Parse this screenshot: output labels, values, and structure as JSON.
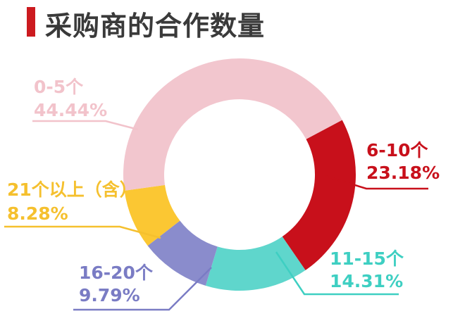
{
  "chart_data": {
    "type": "pie",
    "title": "采购商的合作数量",
    "donut": true,
    "categories": [
      "6-10个",
      "11-15个",
      "16-20个",
      "21个以上（含）",
      "0-5个"
    ],
    "values": [
      23.18,
      14.31,
      9.79,
      8.28,
      44.44
    ],
    "percent_labels": [
      "23.18%",
      "14.31%",
      "9.79%",
      "8.28%",
      "44.44%"
    ],
    "colors": [
      "#c8101b",
      "#5fd6cc",
      "#8a8ccc",
      "#fbc733",
      "#f2c6ce"
    ],
    "label_colors": [
      "#c8101b",
      "#3ecfc2",
      "#7a7cc4",
      "#f5c02e",
      "#f2c3cb"
    ]
  }
}
